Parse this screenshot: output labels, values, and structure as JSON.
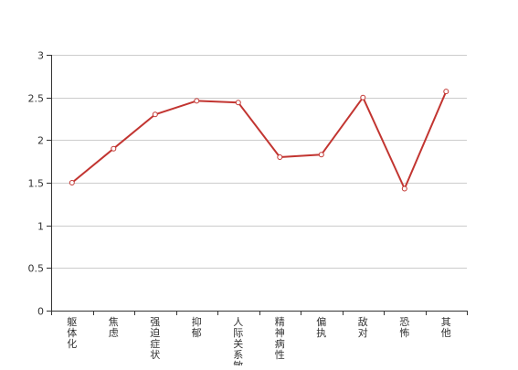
{
  "chart_data": {
    "type": "line",
    "title": "",
    "xlabel": "",
    "ylabel": "",
    "categories": [
      "躯体化",
      "焦虑",
      "强迫症状",
      "抑郁",
      "人际关系敏感",
      "精神病性",
      "偏执",
      "敌对",
      "恐怖",
      "其他"
    ],
    "series": [
      {
        "values": [
          1.5,
          1.9,
          2.3,
          2.46,
          2.44,
          1.8,
          1.83,
          2.5,
          1.43,
          2.57
        ]
      }
    ],
    "ylim": [
      0,
      3
    ],
    "yticks": [
      "0",
      "0.5",
      "1",
      "1.5",
      "2",
      "2.5",
      "3"
    ],
    "grid": true,
    "legend": "none",
    "colors": {
      "line": "#c23531",
      "grid": "#cccccc",
      "axis": "#333333",
      "point_fill": "#ffffff"
    }
  }
}
